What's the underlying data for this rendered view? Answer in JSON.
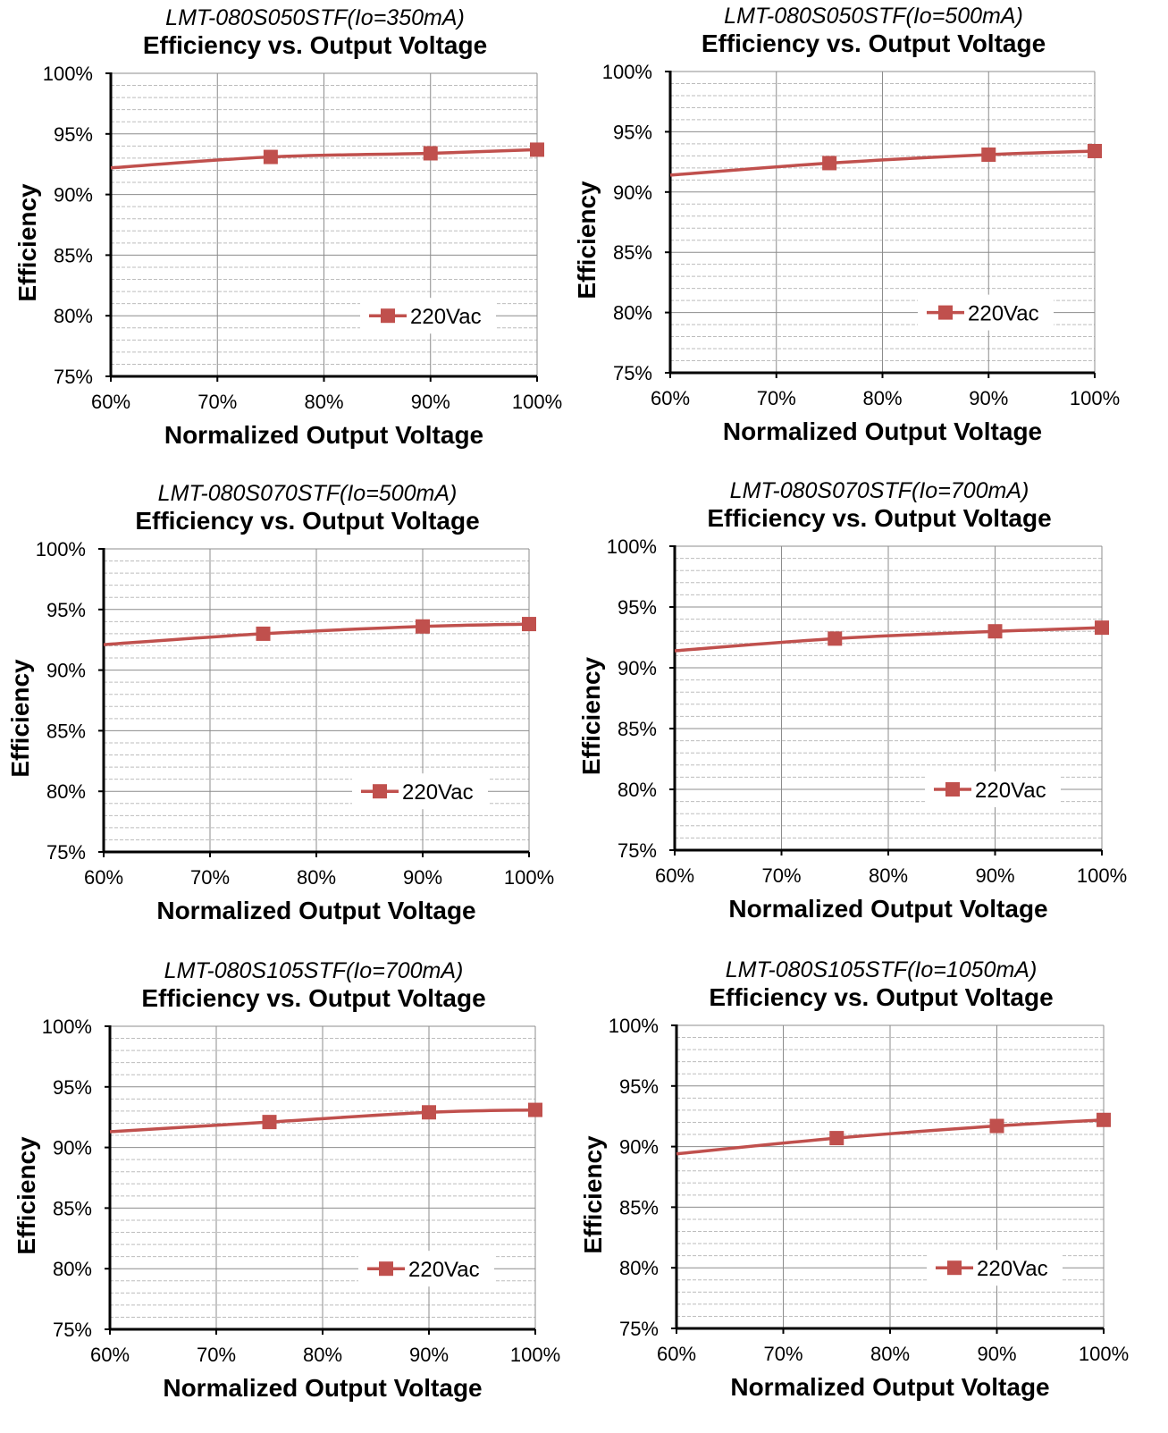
{
  "chart_data": [
    {
      "type": "line",
      "subtitle": "LMT-080S050STF(Io=350mA)",
      "title": "Efficiency vs. Output Voltage",
      "xlabel": "Normalized Output Voltage",
      "ylabel": "Efficiency",
      "xlim": [
        60,
        100
      ],
      "ylim": [
        75,
        100
      ],
      "xticks": [
        "60%",
        "70%",
        "80%",
        "90%",
        "100%"
      ],
      "yticks": [
        "75%",
        "80%",
        "85%",
        "90%",
        "95%",
        "100%"
      ],
      "grid": true,
      "legend_position": "bottom-right",
      "series": [
        {
          "name": "220Vac",
          "color": "#c0504d",
          "x": [
            60,
            75,
            90,
            100
          ],
          "y": [
            92.2,
            93.1,
            93.4,
            93.7
          ]
        }
      ]
    },
    {
      "type": "line",
      "subtitle": "LMT-080S050STF(Io=500mA)",
      "title": "Efficiency vs. Output Voltage",
      "xlabel": "Normalized Output Voltage",
      "ylabel": "Efficiency",
      "xlim": [
        60,
        100
      ],
      "ylim": [
        75,
        100
      ],
      "xticks": [
        "60%",
        "70%",
        "80%",
        "90%",
        "100%"
      ],
      "yticks": [
        "75%",
        "80%",
        "85%",
        "90%",
        "95%",
        "100%"
      ],
      "grid": true,
      "legend_position": "bottom-right",
      "series": [
        {
          "name": "220Vac",
          "color": "#c0504d",
          "x": [
            60,
            75,
            90,
            100
          ],
          "y": [
            91.4,
            92.4,
            93.1,
            93.4
          ]
        }
      ]
    },
    {
      "type": "line",
      "subtitle": "LMT-080S070STF(Io=500mA)",
      "title": "Efficiency vs. Output Voltage",
      "xlabel": "Normalized Output Voltage",
      "ylabel": "Efficiency",
      "xlim": [
        60,
        100
      ],
      "ylim": [
        75,
        100
      ],
      "xticks": [
        "60%",
        "70%",
        "80%",
        "90%",
        "100%"
      ],
      "yticks": [
        "75%",
        "80%",
        "85%",
        "90%",
        "95%",
        "100%"
      ],
      "grid": true,
      "legend_position": "bottom-right",
      "series": [
        {
          "name": "220Vac",
          "color": "#c0504d",
          "x": [
            60,
            75,
            90,
            100
          ],
          "y": [
            92.1,
            93.0,
            93.6,
            93.8
          ]
        }
      ]
    },
    {
      "type": "line",
      "subtitle": "LMT-080S070STF(Io=700mA)",
      "title": "Efficiency vs. Output Voltage",
      "xlabel": "Normalized Output Voltage",
      "ylabel": "Efficiency",
      "xlim": [
        60,
        100
      ],
      "ylim": [
        75,
        100
      ],
      "xticks": [
        "60%",
        "70%",
        "80%",
        "90%",
        "100%"
      ],
      "yticks": [
        "75%",
        "80%",
        "85%",
        "90%",
        "95%",
        "100%"
      ],
      "grid": true,
      "legend_position": "bottom-right",
      "series": [
        {
          "name": "220Vac",
          "color": "#c0504d",
          "x": [
            60,
            75,
            90,
            100
          ],
          "y": [
            91.4,
            92.4,
            93.0,
            93.3
          ]
        }
      ]
    },
    {
      "type": "line",
      "subtitle": "LMT-080S105STF(Io=700mA)",
      "title": "Efficiency vs. Output Voltage",
      "xlabel": "Normalized Output Voltage",
      "ylabel": "Efficiency",
      "xlim": [
        60,
        100
      ],
      "ylim": [
        75,
        100
      ],
      "xticks": [
        "60%",
        "70%",
        "80%",
        "90%",
        "100%"
      ],
      "yticks": [
        "75%",
        "80%",
        "85%",
        "90%",
        "95%",
        "100%"
      ],
      "grid": true,
      "legend_position": "bottom-right",
      "series": [
        {
          "name": "220Vac",
          "color": "#c0504d",
          "x": [
            60,
            75,
            90,
            100
          ],
          "y": [
            91.3,
            92.1,
            92.9,
            93.1
          ]
        }
      ]
    },
    {
      "type": "line",
      "subtitle": "LMT-080S105STF(Io=1050mA)",
      "title": "Efficiency vs. Output Voltage",
      "xlabel": "Normalized Output Voltage",
      "ylabel": "Efficiency",
      "xlim": [
        60,
        100
      ],
      "ylim": [
        75,
        100
      ],
      "xticks": [
        "60%",
        "70%",
        "80%",
        "90%",
        "100%"
      ],
      "yticks": [
        "75%",
        "80%",
        "85%",
        "90%",
        "95%",
        "100%"
      ],
      "grid": true,
      "legend_position": "bottom-right",
      "series": [
        {
          "name": "220Vac",
          "color": "#c0504d",
          "x": [
            60,
            75,
            90,
            100
          ],
          "y": [
            89.4,
            90.7,
            91.7,
            92.2
          ]
        }
      ]
    }
  ]
}
